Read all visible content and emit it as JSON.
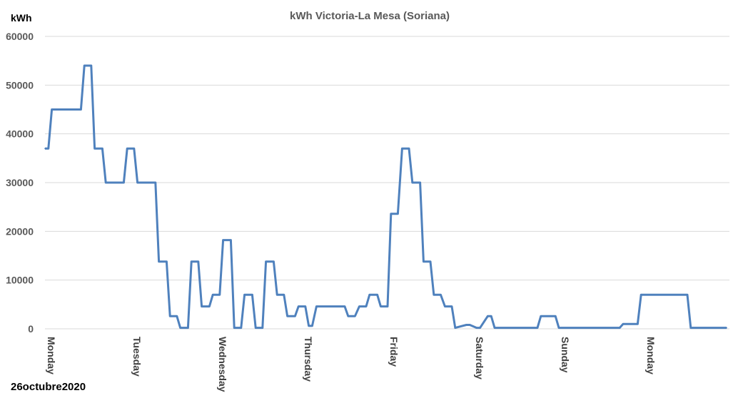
{
  "chart_data": {
    "type": "line",
    "title": "kWh Victoria-La Mesa (Soriana)",
    "ylabel": "kWh",
    "xlabel": "",
    "ylim": [
      0,
      60000
    ],
    "yticks": [
      "0",
      "10000",
      "20000",
      "30000",
      "40000",
      "50000",
      "60000"
    ],
    "xlim": [
      0,
      7.8
    ],
    "categories": [
      "Monday",
      "Tuesday",
      "Wednesday",
      "Thursday",
      "Friday",
      "Saturday",
      "Sunday",
      "Monday"
    ],
    "grid": true,
    "legend": "none",
    "line_color": "#4f81bd",
    "annotation": "26octubre2020",
    "series": [
      {
        "x": [
          0,
          0.04,
          0.08,
          0.42,
          0.46,
          0.54,
          0.58,
          0.67,
          0.71,
          0.92,
          0.96,
          1.04,
          1.08,
          1.29,
          1.33,
          1.42,
          1.46,
          1.54,
          1.58,
          1.67,
          1.71,
          1.79,
          1.83,
          1.92,
          1.96,
          2.04,
          2.08,
          2.17,
          2.21,
          2.29,
          2.33,
          2.42,
          2.46,
          2.54,
          2.58,
          2.67,
          2.71,
          2.79,
          2.83,
          2.92,
          2.96,
          3.04,
          3.08,
          3.12,
          3.17,
          3.5,
          3.54,
          3.62,
          3.67,
          3.75,
          3.79,
          3.88,
          3.92,
          4.0,
          4.04,
          4.12,
          4.17,
          4.25,
          4.29,
          4.38,
          4.42,
          4.5,
          4.54,
          4.62,
          4.67,
          4.75,
          4.79,
          4.92,
          4.96,
          5.04,
          5.08,
          5.17,
          5.21,
          5.25,
          5.29,
          5.75,
          5.79,
          5.96,
          6.0,
          6.71,
          6.75,
          6.92,
          6.96,
          7.5,
          7.54,
          7.71,
          7.75,
          7.92,
          7.96,
          8.04
        ],
        "y": [
          37000,
          37000,
          45000,
          45000,
          54000,
          54000,
          37000,
          37000,
          30000,
          30000,
          37000,
          37000,
          30000,
          30000,
          13800,
          13800,
          2600,
          2600,
          200,
          200,
          13800,
          13800,
          4600,
          4600,
          7000,
          7000,
          18200,
          18200,
          200,
          200,
          7000,
          7000,
          200,
          200,
          13800,
          13800,
          7000,
          7000,
          2600,
          2600,
          4600,
          4600,
          600,
          600,
          4600,
          4600,
          2600,
          2600,
          4600,
          4600,
          7000,
          7000,
          4600,
          4600,
          23600,
          23600,
          37000,
          37000,
          30000,
          30000,
          13800,
          13800,
          7000,
          7000,
          4600,
          4600,
          200,
          800,
          800,
          200,
          200,
          2600,
          2600,
          200,
          200,
          200,
          2600,
          2600,
          200,
          200,
          1000,
          1000,
          7000,
          7000,
          200,
          200,
          200,
          200,
          200,
          200
        ]
      }
    ]
  }
}
